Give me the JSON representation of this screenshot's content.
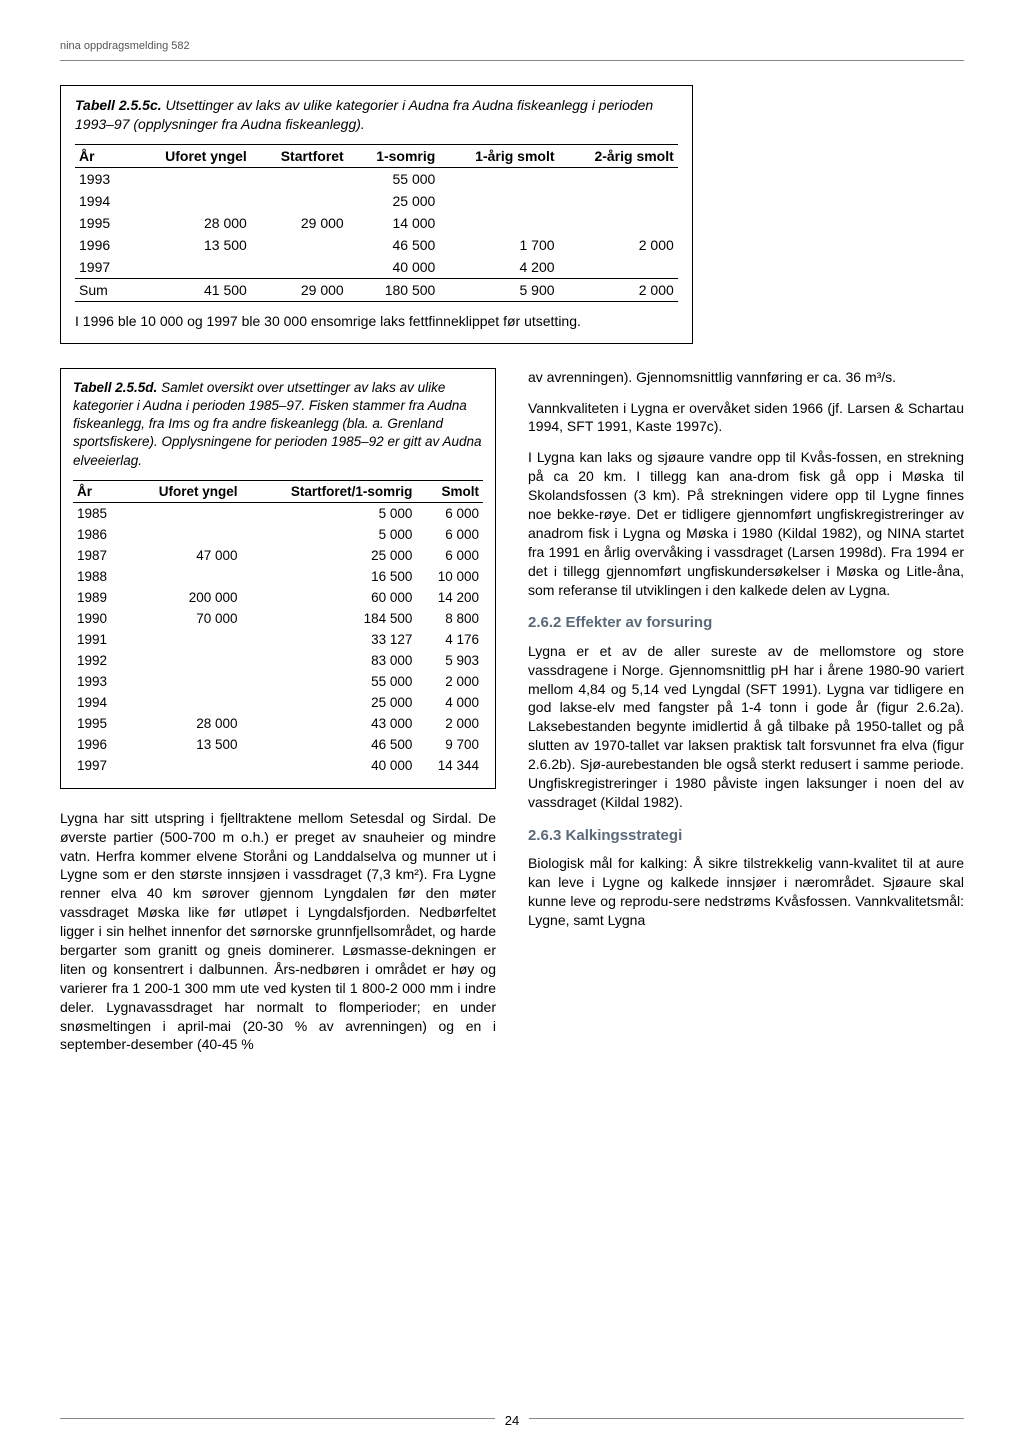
{
  "header": "nina oppdragsmelding 582",
  "page_number": "24",
  "table_c": {
    "label": "Tabell 2.5.5c.",
    "caption": "Utsettinger av laks av ulike kategorier i Audna fra Audna fiskeanlegg i perioden 1993–97 (opplysninger fra Audna fiskeanlegg).",
    "columns": [
      "År",
      "Uforet yngel",
      "Startforet",
      "1-somrig",
      "1-årig smolt",
      "2-årig smolt"
    ],
    "rows": [
      [
        "1993",
        "",
        "",
        "55 000",
        "",
        ""
      ],
      [
        "1994",
        "",
        "",
        "25 000",
        "",
        ""
      ],
      [
        "1995",
        "28 000",
        "29 000",
        "14 000",
        "",
        ""
      ],
      [
        "1996",
        "13 500",
        "",
        "46 500",
        "1 700",
        "2 000"
      ],
      [
        "1997",
        "",
        "",
        "40 000",
        "4 200",
        ""
      ]
    ],
    "sum": [
      "Sum",
      "41 500",
      "29 000",
      "180 500",
      "5 900",
      "2 000"
    ],
    "note": "I 1996 ble 10 000 og 1997 ble 30 000 ensomrige laks fettfinneklippet før utsetting."
  },
  "table_d": {
    "label": "Tabell 2.5.5d.",
    "caption": "Samlet oversikt over utsettinger av laks av ulike kategorier i Audna i perioden 1985–97. Fisken stammer fra Audna fiskeanlegg, fra Ims og fra andre fiskeanlegg (bla. a. Grenland sportsfiskere). Opplysningene for perioden 1985–92 er gitt av Audna elveeierlag.",
    "columns": [
      "År",
      "Uforet yngel",
      "Startforet/1-somrig",
      "Smolt"
    ],
    "rows": [
      [
        "1985",
        "",
        "5 000",
        "6 000"
      ],
      [
        "1986",
        "",
        "5 000",
        "6 000"
      ],
      [
        "1987",
        "47 000",
        "25 000",
        "6 000"
      ],
      [
        "1988",
        "",
        "16 500",
        "10 000"
      ],
      [
        "1989",
        "200 000",
        "60 000",
        "14 200"
      ],
      [
        "1990",
        "70 000",
        "184 500",
        "8 800"
      ],
      [
        "1991",
        "",
        "33 127",
        "4 176"
      ],
      [
        "1992",
        "",
        "83 000",
        "5 903"
      ],
      [
        "1993",
        "",
        "55 000",
        "2 000"
      ],
      [
        "1994",
        "",
        "25 000",
        "4 000"
      ],
      [
        "1995",
        "28 000",
        "43 000",
        "2 000"
      ],
      [
        "1996",
        "13 500",
        "46 500",
        "9 700"
      ],
      [
        "1997",
        "",
        "40 000",
        "14 344"
      ]
    ]
  },
  "left_body": "Lygna har sitt utspring i fjelltraktene mellom Setesdal og Sirdal. De øverste partier (500-700 m o.h.) er preget av snauheier og mindre vatn. Herfra kommer elvene Storåni og Landdalselva og munner ut i Lygne som er den største innsjøen i vassdraget (7,3 km²). Fra Lygne renner elva 40 km sørover gjennom Lyngdalen før den møter vassdraget Møska like før utløpet i Lyngdalsfjorden. Nedbørfeltet ligger i sin helhet innenfor det sørnorske grunnfjellsområdet, og harde bergarter som granitt og gneis dominerer. Løsmasse-dekningen er liten og konsentrert i dalbunnen. Års-nedbøren i området er høy og varierer fra 1 200-1 300 mm ute ved kysten til 1 800-2 000 mm i indre deler. Lygnavassdraget har normalt to flomperioder; en under snøsmeltingen i april-mai (20-30 % av avrenningen) og en i september-desember (40-45 %",
  "right": {
    "p1": "av avrenningen). Gjennomsnittlig vannføring er ca. 36 m³/s.",
    "p2": "Vannkvaliteten i Lygna er overvåket siden 1966 (jf. Larsen & Schartau 1994, SFT 1991, Kaste 1997c).",
    "p3": "I Lygna kan laks og sjøaure vandre opp til Kvås-fossen, en strekning på ca 20 km. I tillegg kan ana-drom fisk gå opp i Møska til Skolandsfossen (3 km). På strekningen videre opp til Lygne finnes noe bekke-røye. Det er tidligere gjennomført ungfiskregistreringer av anadrom fisk i Lygna og Møska i 1980 (Kildal 1982), og NINA startet fra 1991 en årlig overvåking i vassdraget (Larsen 1998d). Fra 1994 er det i tillegg gjennomført ungfiskundersøkelser i Møska og Litle-åna, som referanse til utviklingen i den kalkede delen av Lygna.",
    "h1": "2.6.2 Effekter av forsuring",
    "p4": "Lygna er et av de aller sureste av de mellomstore og store vassdragene i Norge. Gjennomsnittlig pH har i årene 1980-90 variert mellom 4,84 og 5,14 ved Lyngdal (SFT 1991). Lygna var tidligere en god lakse-elv med fangster på 1-4 tonn i gode år (figur 2.6.2a). Laksebestanden begynte imidlertid å gå tilbake på 1950-tallet og på slutten av 1970-tallet var laksen praktisk talt forsvunnet fra elva (figur 2.6.2b). Sjø-aurebestanden ble også sterkt redusert i samme periode. Ungfiskregistreringer i 1980 påviste ingen laksunger i noen del av vassdraget (Kildal 1982).",
    "h2": "2.6.3 Kalkingsstrategi",
    "p5": "Biologisk mål for kalking: Å sikre tilstrekkelig vann-kvalitet til at aure kan leve i Lygne og kalkede innsjøer i nærområdet. Sjøaure skal kunne leve og reprodu-sere nedstrøms Kvåsfossen. Vannkvalitetsmål: Lygne, samt Lygna"
  }
}
